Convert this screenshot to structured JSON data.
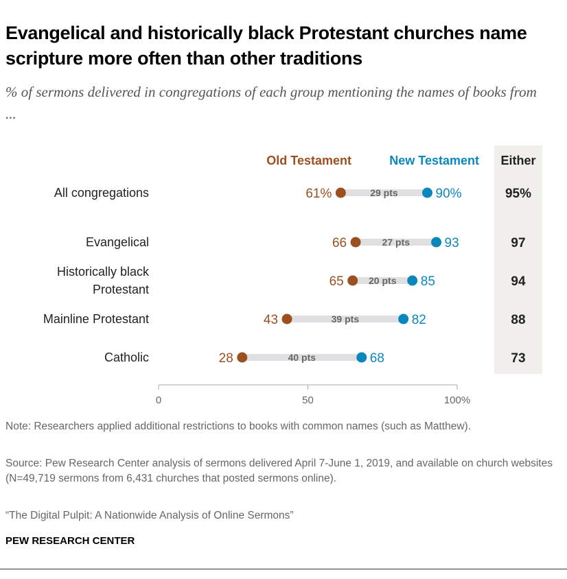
{
  "title": "Evangelical and historically black Protestant churches name scripture more often than other traditions",
  "subtitle": "% of sermons delivered in congregations of each group mentioning the names of books from ...",
  "notes": [
    "Note: Researchers applied additional restrictions to books with common names (such as Matthew).",
    "Source: Pew Research Center analysis of sermons delivered April 7-June 1, 2019, and available on church websites (N=49,719 sermons from 6,431 churches that posted sermons online).",
    "“The Digital Pulpit: A Nationwide Analysis of Online Sermons”"
  ],
  "brand": "PEW RESEARCH CENTER",
  "colors": {
    "old": "#9c4f1f",
    "new": "#0b87bd",
    "bar": "#e0e0e2",
    "either_bg": "#f0efeb"
  },
  "chart_data": {
    "type": "dot",
    "series": [
      {
        "name": "Old Testament",
        "values": [
          61,
          66,
          65,
          43,
          28
        ]
      },
      {
        "name": "New Testament",
        "values": [
          90,
          93,
          85,
          82,
          68
        ]
      }
    ],
    "categories": [
      [
        "All congregations"
      ],
      [
        "Evangelical"
      ],
      [
        "Historically black",
        "Protestant"
      ],
      [
        "Mainline Protestant"
      ],
      [
        "Catholic"
      ]
    ],
    "gap_labels": [
      "29 pts",
      "27 pts",
      "20 pts",
      "39 pts",
      "40 pts"
    ],
    "old_labels": [
      "61%",
      "66",
      "65",
      "43",
      "28"
    ],
    "new_labels": [
      "90%",
      "93",
      "85",
      "82",
      "68"
    ],
    "either_header": "Either",
    "either": [
      "95%",
      "97",
      "94",
      "88",
      "73"
    ],
    "xlim": [
      0,
      100
    ],
    "x_ticks": [
      0,
      50,
      100
    ],
    "x_tick_labels": [
      "0",
      "50",
      "100%"
    ]
  }
}
